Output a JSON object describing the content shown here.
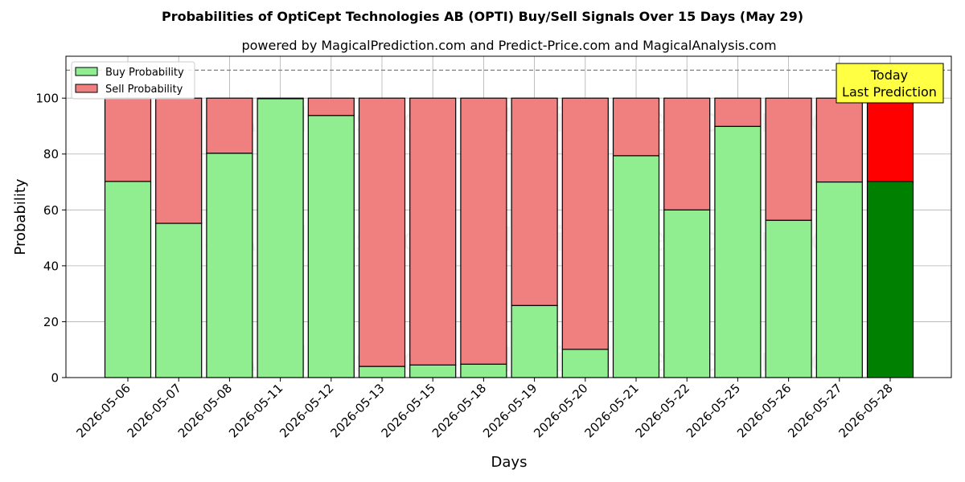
{
  "chart_data": {
    "type": "bar",
    "stacked": true,
    "title": "Probabilities of OptiCept Technologies AB (OPTI) Buy/Sell Signals Over 15 Days (May 29)",
    "subtitle": "powered by MagicalPrediction.com and Predict-Price.com and MagicalAnalysis.com",
    "xlabel": "Days",
    "ylabel": "Probability",
    "ylim": [
      0,
      115
    ],
    "yticks": [
      0,
      20,
      40,
      60,
      80,
      100
    ],
    "reference_line": 110,
    "grid": true,
    "legend_position": "top-left",
    "categories": [
      "2026-05-06",
      "2026-05-07",
      "2026-05-08",
      "2026-05-11",
      "2026-05-12",
      "2026-05-13",
      "2026-05-15",
      "2026-05-18",
      "2026-05-19",
      "2026-05-20",
      "2026-05-21",
      "2026-05-22",
      "2026-05-25",
      "2026-05-26",
      "2026-05-27",
      "2026-05-28"
    ],
    "series": [
      {
        "name": "Buy Probability",
        "color": "#90ee90",
        "highlight_color": "#008000",
        "values": [
          70.2,
          55.2,
          80.3,
          99.8,
          93.8,
          4.0,
          4.5,
          4.8,
          25.8,
          10.1,
          79.4,
          60.0,
          89.9,
          56.3,
          70.0,
          70.2
        ]
      },
      {
        "name": "Sell Probability",
        "color": "#f08080",
        "highlight_color": "#ff0000",
        "values": [
          29.8,
          44.8,
          19.7,
          0.2,
          6.2,
          96.0,
          95.5,
          95.2,
          74.2,
          89.9,
          20.6,
          40.0,
          10.1,
          43.7,
          30.0,
          29.8
        ]
      }
    ],
    "annotation": {
      "lines": [
        "Today",
        "Last Prediction"
      ],
      "bg_color": "#ffff44"
    },
    "watermarks": [
      "MagicalAnalysis.com",
      "MagicalPrediction.com"
    ]
  }
}
